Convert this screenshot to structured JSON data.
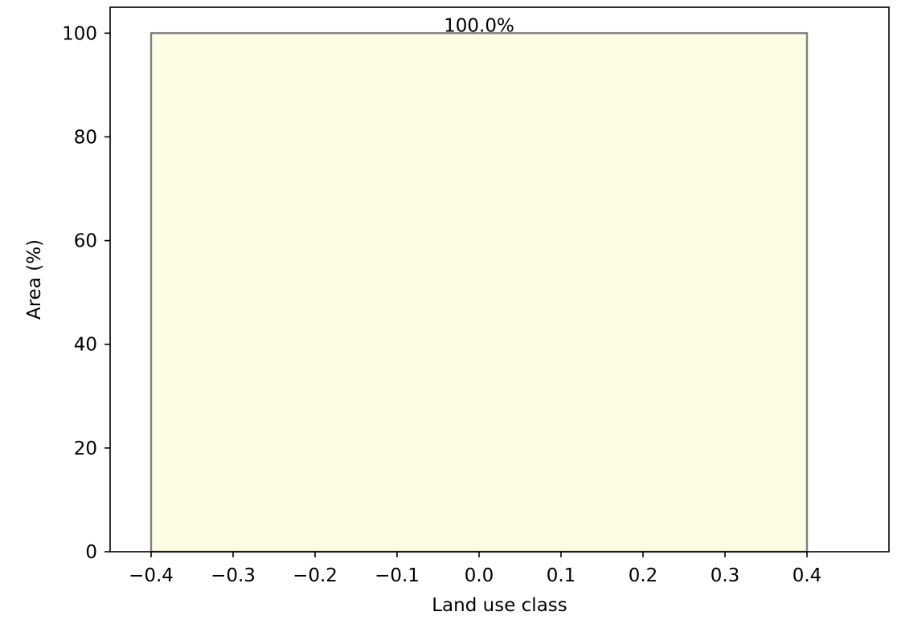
{
  "chart_data": {
    "type": "bar",
    "title": "",
    "xlabel": "Land use class",
    "ylabel": "Area (%)",
    "xlim": [
      -0.45,
      0.5
    ],
    "ylim": [
      0,
      105
    ],
    "grid": false,
    "bars": [
      {
        "x": 0.0,
        "width": 0.8,
        "value": 100,
        "label": "100.0%",
        "color": "#fdfde3",
        "edge_color": "#808080"
      }
    ],
    "x_ticks": [
      {
        "value": -0.4,
        "label": "−0.4"
      },
      {
        "value": -0.3,
        "label": "−0.3"
      },
      {
        "value": -0.2,
        "label": "−0.2"
      },
      {
        "value": -0.1,
        "label": "−0.1"
      },
      {
        "value": 0.0,
        "label": "0.0"
      },
      {
        "value": 0.1,
        "label": "0.1"
      },
      {
        "value": 0.2,
        "label": "0.2"
      },
      {
        "value": 0.3,
        "label": "0.3"
      },
      {
        "value": 0.4,
        "label": "0.4"
      }
    ],
    "y_ticks": [
      {
        "value": 0,
        "label": "0"
      },
      {
        "value": 20,
        "label": "20"
      },
      {
        "value": 40,
        "label": "40"
      },
      {
        "value": 60,
        "label": "60"
      },
      {
        "value": 80,
        "label": "80"
      },
      {
        "value": 100,
        "label": "100"
      }
    ]
  }
}
